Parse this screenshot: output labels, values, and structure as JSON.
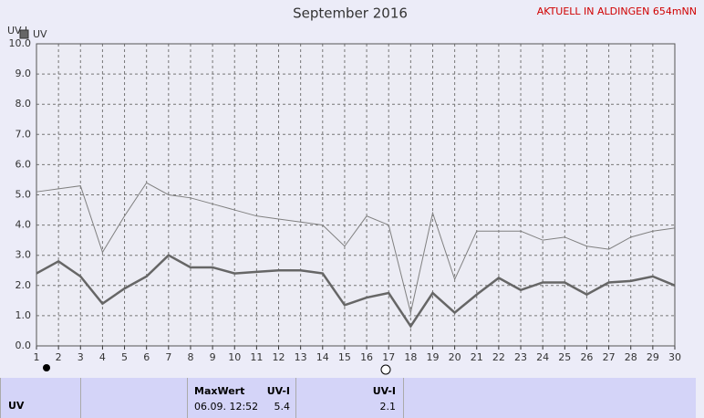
{
  "chart_data": {
    "type": "line",
    "title": "September 2016",
    "ylabel": "UV-I",
    "x": [
      1,
      2,
      3,
      4,
      5,
      6,
      7,
      8,
      9,
      10,
      11,
      12,
      13,
      14,
      15,
      16,
      17,
      18,
      19,
      20,
      21,
      22,
      23,
      24,
      25,
      26,
      27,
      28,
      29,
      30
    ],
    "xlim": [
      1,
      30
    ],
    "xticks": [
      1,
      2,
      3,
      4,
      5,
      6,
      7,
      8,
      9,
      10,
      11,
      12,
      13,
      14,
      15,
      16,
      17,
      18,
      19,
      20,
      21,
      22,
      23,
      24,
      25,
      26,
      27,
      28,
      29,
      30
    ],
    "ylim": [
      0,
      10
    ],
    "yticks": [
      {
        "value": 0,
        "label": "0.0"
      },
      {
        "value": 1,
        "label": "1.0"
      },
      {
        "value": 2,
        "label": "2.0"
      },
      {
        "value": 3,
        "label": "3.0"
      },
      {
        "value": 4,
        "label": "4.0"
      },
      {
        "value": 5,
        "label": "5.0"
      },
      {
        "value": 6,
        "label": "6.0"
      },
      {
        "value": 7,
        "label": "7.0"
      },
      {
        "value": 8,
        "label": "8.0"
      },
      {
        "value": 9,
        "label": "9.0"
      },
      {
        "value": 10,
        "label": "10.0"
      }
    ],
    "grid": true,
    "series": [
      {
        "name": "UV",
        "color": "#666666",
        "values": [
          2.4,
          2.8,
          2.3,
          1.4,
          1.9,
          2.3,
          3.0,
          2.6,
          2.6,
          2.4,
          2.45,
          2.5,
          2.5,
          2.4,
          1.35,
          1.6,
          1.75,
          0.65,
          1.75,
          1.1,
          1.7,
          2.25,
          1.85,
          2.1,
          2.1,
          1.7,
          2.1,
          2.15,
          2.3,
          2.0
        ]
      },
      {
        "color": "#808080",
        "values": [
          5.1,
          5.2,
          5.3,
          3.1,
          4.3,
          5.4,
          5.0,
          4.9,
          4.7,
          4.5,
          4.3,
          4.2,
          4.1,
          4.0,
          3.3,
          4.3,
          4.0,
          1.1,
          4.4,
          2.2,
          3.8,
          3.8,
          3.8,
          3.5,
          3.6,
          3.3,
          3.2,
          3.6,
          3.8,
          3.9
        ]
      }
    ]
  },
  "status": "AKTUELL IN ALDINGEN 654mNN",
  "summary": {
    "row_label": "UV",
    "max_header": "MaxWert",
    "max_unit": "UV-I",
    "max_time": "06.09. 12:52",
    "max_value": "5.4",
    "current_unit": "UV-I",
    "current_value": "2.1"
  }
}
